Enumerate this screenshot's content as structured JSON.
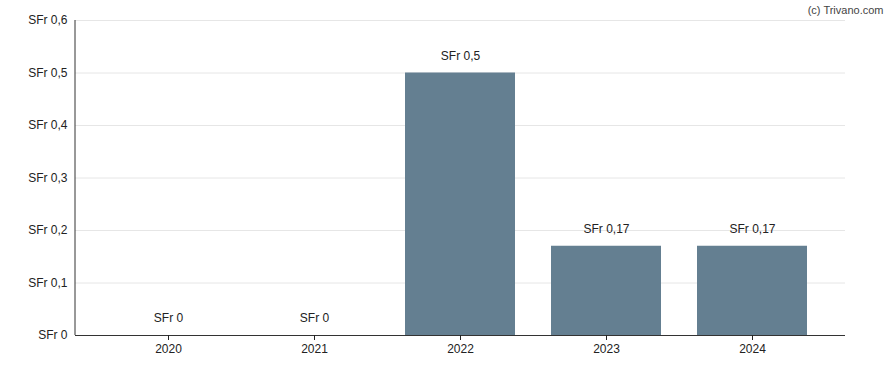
{
  "chart_data": {
    "type": "bar",
    "annotation": "(c) Trivano.com",
    "categories": [
      "2020",
      "2021",
      "2022",
      "2023",
      "2024"
    ],
    "values": [
      0,
      0,
      0.5,
      0.17,
      0.17
    ],
    "value_labels": [
      "SFr 0",
      "SFr 0",
      "SFr 0,5",
      "SFr 0,17",
      "SFr 0,17"
    ],
    "data_labels": true,
    "color": "#647f91",
    "ylim": [
      0,
      0.6
    ],
    "yticks": [
      {
        "value": 0,
        "label": "SFr 0"
      },
      {
        "value": 0.1,
        "label": "SFr 0,1"
      },
      {
        "value": 0.2,
        "label": "SFr 0,2"
      },
      {
        "value": 0.3,
        "label": "SFr 0,3"
      },
      {
        "value": 0.4,
        "label": "SFr 0,4"
      },
      {
        "value": 0.5,
        "label": "SFr 0,5"
      },
      {
        "value": 0.6,
        "label": "SFr 0,6"
      }
    ],
    "grid": true
  }
}
